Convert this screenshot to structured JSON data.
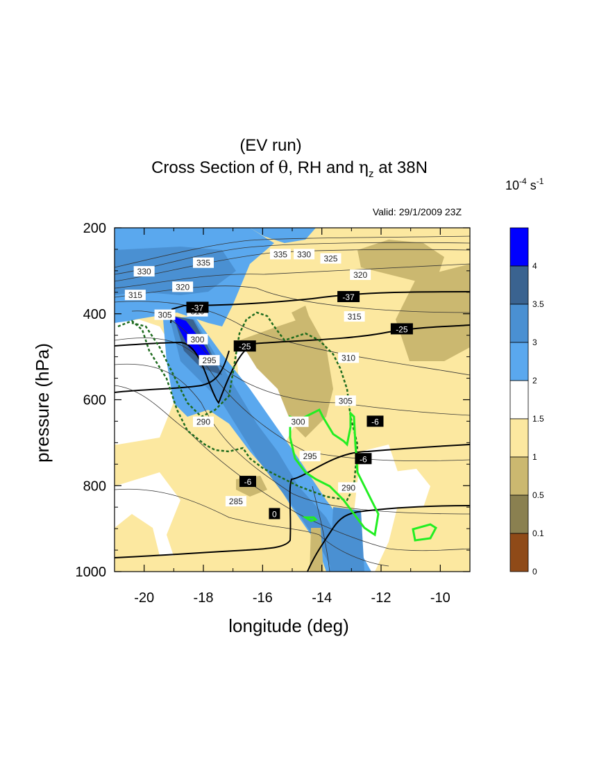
{
  "figure": {
    "title_line1": "(EV run)",
    "title_line2_prefix": "Cross Section of ",
    "title_theta": "θ",
    "title_mid": ", RH and ",
    "title_eta": "η",
    "title_eta_sub": "z",
    "title_suffix": " at 38N",
    "valid": "Valid: 29/1/2009  23Z",
    "units_base": "10",
    "units_exp": "-4",
    "units_s": " s",
    "units_sexp": "-1"
  },
  "chart_data": {
    "type": "contour",
    "xlabel": "longitude (deg)",
    "ylabel": "pressure (hPa)",
    "xlim": [
      -21,
      -9
    ],
    "ylim": [
      1000,
      200
    ],
    "x_ticks": [
      -20,
      -18,
      -16,
      -14,
      -12,
      -10
    ],
    "x_tick_labels": [
      "-20",
      "-18",
      "-16",
      "-14",
      "-12",
      "-10"
    ],
    "y_ticks": [
      200,
      400,
      600,
      800,
      1000
    ],
    "y_tick_labels": [
      "200",
      "400",
      "600",
      "800",
      "1000"
    ],
    "colorbar": {
      "variable": "eta_z",
      "labels": [
        "4",
        "3.5",
        "3",
        "2",
        "1.5",
        "1",
        "0.5",
        "0.1",
        "0"
      ],
      "colors": [
        "#0000ff",
        "#3a6390",
        "#4a90d2",
        "#5aa8ee",
        "#ffffff",
        "#fce8a0",
        "#cbb870",
        "#8a8050",
        "#8f4a18"
      ]
    },
    "theta_contour_labels": [
      {
        "label": "335",
        "lon": -18.0,
        "p": 282
      },
      {
        "label": "335",
        "lon": -15.4,
        "p": 262
      },
      {
        "label": "330",
        "lon": -20.0,
        "p": 302
      },
      {
        "label": "330",
        "lon": -14.6,
        "p": 262
      },
      {
        "label": "325",
        "lon": -13.7,
        "p": 272
      },
      {
        "label": "320",
        "lon": -18.7,
        "p": 338
      },
      {
        "label": "320",
        "lon": -12.7,
        "p": 310
      },
      {
        "label": "315",
        "lon": -20.3,
        "p": 357
      },
      {
        "label": "315",
        "lon": -12.9,
        "p": 407
      },
      {
        "label": "310",
        "lon": -18.2,
        "p": 395
      },
      {
        "label": "310",
        "lon": -13.1,
        "p": 503
      },
      {
        "label": "305",
        "lon": -19.3,
        "p": 403
      },
      {
        "label": "305",
        "lon": -13.2,
        "p": 603
      },
      {
        "label": "300",
        "lon": -18.2,
        "p": 460
      },
      {
        "label": "300",
        "lon": -14.8,
        "p": 652
      },
      {
        "label": "295",
        "lon": -17.8,
        "p": 509
      },
      {
        "label": "295",
        "lon": -14.4,
        "p": 732
      },
      {
        "label": "290",
        "lon": -18.0,
        "p": 652
      },
      {
        "label": "290",
        "lon": -13.1,
        "p": 805
      },
      {
        "label": "285",
        "lon": -16.9,
        "p": 837
      }
    ],
    "temperature_contour_labels": [
      {
        "label": "-37",
        "lon": -18.2,
        "p": 385
      },
      {
        "label": "-37",
        "lon": -13.1,
        "p": 360
      },
      {
        "label": "-25",
        "lon": -16.6,
        "p": 475
      },
      {
        "label": "-25",
        "lon": -11.3,
        "p": 435
      },
      {
        "label": "-6",
        "lon": -16.5,
        "p": 790
      },
      {
        "label": "-6",
        "lon": -12.2,
        "p": 650
      },
      {
        "label": "-6",
        "lon": -12.6,
        "p": 737
      },
      {
        "label": "0",
        "lon": -15.6,
        "p": 865
      }
    ],
    "rh_contours": [
      "dashed dark green",
      "solid bright green"
    ]
  }
}
